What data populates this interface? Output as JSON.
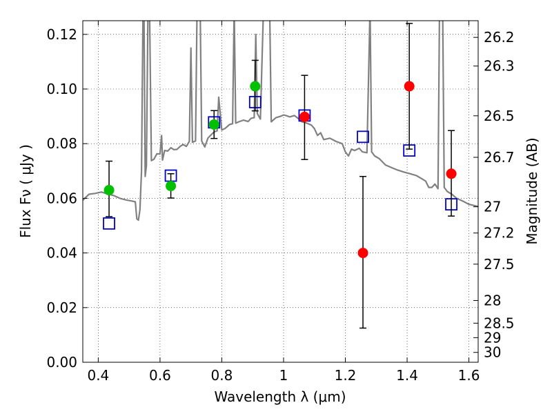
{
  "chart_data": {
    "type": "scatter",
    "xlabel": "Wavelength  λ (μm)",
    "ylabel": "Flux  Fν  ( μJy )",
    "y2label": "Magnitude (AB)",
    "xlim": [
      0.35,
      1.63
    ],
    "ylim": [
      0.0,
      0.125
    ],
    "grid": true,
    "xticks": [
      0.4,
      0.6,
      0.8,
      1.0,
      1.2,
      1.4,
      1.6
    ],
    "xtick_labels": [
      "0.4",
      "0.6",
      "0.8",
      "1",
      "1.2",
      "1.4",
      "1.6"
    ],
    "yticks": [
      0.0,
      0.02,
      0.04,
      0.06,
      0.08,
      0.1,
      0.12
    ],
    "ytick_labels": [
      "0.00",
      "0.02",
      "0.04",
      "0.06",
      "0.08",
      "0.10",
      "0.12"
    ],
    "y2ticks": [
      {
        "label": "26.2",
        "flux": 0.1189
      },
      {
        "label": "26.3",
        "flux": 0.1084
      },
      {
        "label": "26.5",
        "flux": 0.0902
      },
      {
        "label": "26.7",
        "flux": 0.075
      },
      {
        "label": "27",
        "flux": 0.0569
      },
      {
        "label": "27.2",
        "flux": 0.0473
      },
      {
        "label": "27.5",
        "flux": 0.0359
      },
      {
        "label": "28",
        "flux": 0.0226
      },
      {
        "label": "28.5",
        "flux": 0.0143
      },
      {
        "label": "29",
        "flux": 0.009
      },
      {
        "label": "30",
        "flux": 0.0036
      }
    ],
    "colors": {
      "model": "#808080",
      "green": "#00c000",
      "red": "#ff0000",
      "square": "#0000cc",
      "errorbar": "#000000"
    },
    "series": [
      {
        "style": "line",
        "points": [
          [
            0.35,
            0.0593
          ],
          [
            0.37,
            0.0615
          ],
          [
            0.39,
            0.0618
          ],
          [
            0.41,
            0.0623
          ],
          [
            0.43,
            0.0616
          ],
          [
            0.45,
            0.061
          ],
          [
            0.47,
            0.06
          ],
          [
            0.49,
            0.0594
          ],
          [
            0.51,
            0.059
          ],
          [
            0.52,
            0.0587
          ],
          [
            0.525,
            0.0525
          ],
          [
            0.53,
            0.052
          ],
          [
            0.535,
            0.0558
          ],
          [
            0.54,
            0.07
          ],
          [
            0.545,
            0.13
          ],
          [
            0.548,
            0.13
          ],
          [
            0.552,
            0.068
          ],
          [
            0.556,
            0.072
          ],
          [
            0.561,
            0.13
          ],
          [
            0.566,
            0.13
          ],
          [
            0.572,
            0.0738
          ],
          [
            0.58,
            0.0743
          ],
          [
            0.59,
            0.0763
          ],
          [
            0.6,
            0.0762
          ],
          [
            0.605,
            0.083
          ],
          [
            0.608,
            0.074
          ],
          [
            0.615,
            0.0775
          ],
          [
            0.625,
            0.0773
          ],
          [
            0.635,
            0.0785
          ],
          [
            0.645,
            0.0778
          ],
          [
            0.655,
            0.0779
          ],
          [
            0.665,
            0.079
          ],
          [
            0.675,
            0.0797
          ],
          [
            0.685,
            0.079
          ],
          [
            0.695,
            0.0808
          ],
          [
            0.7,
            0.115
          ],
          [
            0.705,
            0.0805
          ],
          [
            0.715,
            0.081
          ],
          [
            0.72,
            0.13
          ],
          [
            0.73,
            0.13
          ],
          [
            0.735,
            0.081
          ],
          [
            0.745,
            0.0788
          ],
          [
            0.755,
            0.082
          ],
          [
            0.765,
            0.0832
          ],
          [
            0.775,
            0.0843
          ],
          [
            0.785,
            0.0847
          ],
          [
            0.79,
            0.097
          ],
          [
            0.8,
            0.085
          ],
          [
            0.81,
            0.0855
          ],
          [
            0.825,
            0.087
          ],
          [
            0.835,
            0.0873
          ],
          [
            0.84,
            0.13
          ],
          [
            0.845,
            0.0875
          ],
          [
            0.855,
            0.088
          ],
          [
            0.87,
            0.0886
          ],
          [
            0.885,
            0.0881
          ],
          [
            0.895,
            0.0893
          ],
          [
            0.905,
            0.0895
          ],
          [
            0.91,
            0.12
          ],
          [
            0.915,
            0.091
          ],
          [
            0.925,
            0.089
          ],
          [
            0.935,
            0.13
          ],
          [
            0.945,
            0.13
          ],
          [
            0.955,
            0.13
          ],
          [
            0.96,
            0.088
          ],
          [
            0.975,
            0.0895
          ],
          [
            0.99,
            0.09
          ],
          [
            1.0,
            0.0905
          ],
          [
            1.01,
            0.0902
          ],
          [
            1.02,
            0.0898
          ],
          [
            1.035,
            0.0903
          ],
          [
            1.05,
            0.089
          ],
          [
            1.06,
            0.088
          ],
          [
            1.075,
            0.0875
          ],
          [
            1.09,
            0.0868
          ],
          [
            1.1,
            0.0855
          ],
          [
            1.11,
            0.083
          ],
          [
            1.12,
            0.084
          ],
          [
            1.13,
            0.0815
          ],
          [
            1.15,
            0.082
          ],
          [
            1.17,
            0.0808
          ],
          [
            1.19,
            0.08
          ],
          [
            1.2,
            0.077
          ],
          [
            1.21,
            0.0755
          ],
          [
            1.22,
            0.078
          ],
          [
            1.23,
            0.0775
          ],
          [
            1.245,
            0.0783
          ],
          [
            1.255,
            0.077
          ],
          [
            1.27,
            0.0767
          ],
          [
            1.28,
            0.13
          ],
          [
            1.285,
            0.077
          ],
          [
            1.295,
            0.0755
          ],
          [
            1.31,
            0.0745
          ],
          [
            1.33,
            0.0722
          ],
          [
            1.35,
            0.0712
          ],
          [
            1.37,
            0.0703
          ],
          [
            1.39,
            0.0696
          ],
          [
            1.41,
            0.069
          ],
          [
            1.43,
            0.0683
          ],
          [
            1.45,
            0.067
          ],
          [
            1.46,
            0.0663
          ],
          [
            1.47,
            0.064
          ],
          [
            1.48,
            0.064
          ],
          [
            1.49,
            0.0652
          ],
          [
            1.5,
            0.0635
          ],
          [
            1.505,
            0.13
          ],
          [
            1.515,
            0.13
          ],
          [
            1.52,
            0.064
          ],
          [
            1.53,
            0.0625
          ],
          [
            1.545,
            0.0615
          ],
          [
            1.56,
            0.06
          ],
          [
            1.58,
            0.059
          ],
          [
            1.6,
            0.0578
          ],
          [
            1.63,
            0.057
          ]
        ]
      },
      {
        "style": "square",
        "points": [
          [
            0.435,
            0.0508
          ],
          [
            0.635,
            0.0683
          ],
          [
            0.775,
            0.0878
          ],
          [
            0.908,
            0.0952
          ],
          [
            1.068,
            0.0903
          ],
          [
            1.257,
            0.0825
          ],
          [
            1.407,
            0.0775
          ],
          [
            1.543,
            0.0578
          ]
        ]
      },
      {
        "style": "circle-green",
        "points": [
          {
            "x": 0.435,
            "y": 0.063,
            "ylo": 0.0533,
            "yhi": 0.0736
          },
          {
            "x": 0.635,
            "y": 0.0645,
            "ylo": 0.0601,
            "yhi": 0.069
          },
          {
            "x": 0.775,
            "y": 0.087,
            "ylo": 0.0819,
            "yhi": 0.0921
          },
          {
            "x": 0.908,
            "y": 0.101,
            "ylo": 0.092,
            "yhi": 0.1105
          }
        ]
      },
      {
        "style": "circle-red",
        "points": [
          {
            "x": 1.068,
            "y": 0.0898,
            "ylo": 0.0742,
            "yhi": 0.105
          },
          {
            "x": 1.257,
            "y": 0.04,
            "ylo": 0.0125,
            "yhi": 0.068
          },
          {
            "x": 1.407,
            "y": 0.101,
            "ylo": 0.078,
            "yhi": 0.124
          },
          {
            "x": 1.543,
            "y": 0.069,
            "ylo": 0.0535,
            "yhi": 0.0848
          }
        ]
      }
    ]
  }
}
